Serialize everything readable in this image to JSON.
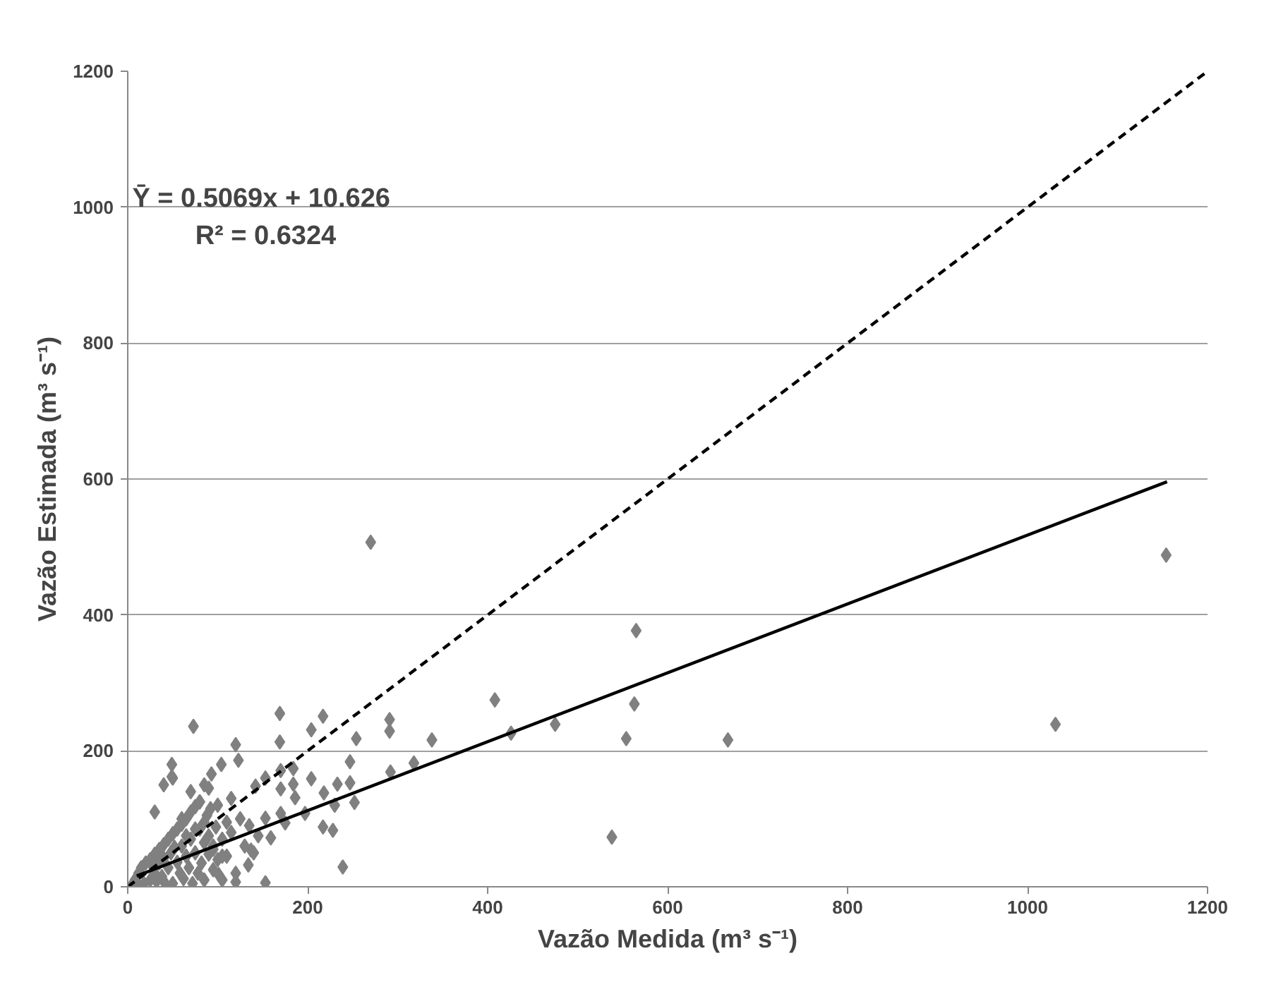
{
  "chart_data": {
    "type": "scatter",
    "xlabel": "Vazão Medida (m³ s⁻¹)",
    "ylabel": "Vazão Estimada (m³ s⁻¹)",
    "annotations": [
      "Ȳ = 0.5069x + 10.626",
      "R² = 0.6324"
    ],
    "xlim": [
      0,
      1200
    ],
    "ylim": [
      0,
      1200
    ],
    "xticks": [
      0,
      200,
      400,
      600,
      800,
      1000,
      1200
    ],
    "yticks": [
      0,
      200,
      400,
      600,
      800,
      1000,
      1200
    ],
    "grid": "y",
    "marker": "diamond",
    "series": [
      {
        "color": "#808080",
        "x": [
          270,
          73,
          169,
          217,
          204,
          169,
          120,
          123,
          291,
          291,
          254,
          338,
          408,
          426,
          49,
          49,
          104,
          93,
          85,
          247,
          292,
          318,
          170,
          184,
          153,
          204,
          233,
          247,
          170,
          142,
          184,
          218,
          252,
          230,
          186,
          170,
          153,
          175,
          197,
          159,
          217,
          228,
          239,
          134,
          120,
          153,
          101,
          137,
          1154,
          565,
          563,
          554,
          538,
          475,
          667,
          1031,
          5,
          8,
          10,
          12,
          15,
          18,
          20,
          25,
          25,
          28,
          30,
          30,
          32,
          35,
          35,
          38,
          40,
          40,
          42,
          45,
          45,
          48,
          50,
          50,
          52,
          55,
          55,
          58,
          60,
          60,
          62,
          65,
          65,
          68,
          70,
          70,
          72,
          75,
          75,
          78,
          80,
          80,
          82,
          85,
          85,
          88,
          90,
          90,
          92,
          95,
          95,
          98,
          100,
          100,
          105,
          105,
          110,
          110,
          115,
          115,
          120,
          125,
          130,
          135,
          140,
          145,
          60,
          70,
          80,
          90,
          50,
          40,
          30,
          65,
          75,
          85,
          95,
          105
        ],
        "values": [
          507,
          236,
          255,
          251,
          231,
          213,
          209,
          186,
          246,
          229,
          218,
          216,
          275,
          226,
          180,
          162,
          180,
          166,
          150,
          184,
          169,
          182,
          171,
          174,
          160,
          159,
          151,
          153,
          144,
          148,
          151,
          138,
          124,
          120,
          131,
          108,
          101,
          94,
          108,
          72,
          88,
          83,
          29,
          32,
          7,
          6,
          18,
          54,
          488,
          377,
          269,
          218,
          73,
          239,
          216,
          239,
          3,
          10,
          6,
          20,
          28,
          5,
          35,
          40,
          10,
          30,
          48,
          20,
          8,
          55,
          35,
          15,
          62,
          42,
          4,
          70,
          28,
          50,
          78,
          5,
          58,
          85,
          36,
          20,
          92,
          60,
          12,
          100,
          45,
          28,
          110,
          70,
          5,
          118,
          50,
          20,
          125,
          85,
          35,
          95,
          10,
          105,
          75,
          48,
          115,
          60,
          25,
          88,
          40,
          120,
          70,
          10,
          95,
          45,
          130,
          80,
          20,
          100,
          60,
          90,
          50,
          75,
          100,
          140,
          125,
          145,
          160,
          150,
          110,
          75,
          85,
          65,
          55,
          45
        ]
      },
      {
        "type": "line",
        "color": "#000000",
        "line_style": "solid",
        "marker": "none",
        "x": [
          10,
          1155
        ],
        "values": [
          16,
          596
        ]
      },
      {
        "type": "line",
        "color": "#000000",
        "line_style": "dashed",
        "marker": "none",
        "x": [
          0,
          1200
        ],
        "values": [
          0,
          1200
        ]
      }
    ]
  }
}
